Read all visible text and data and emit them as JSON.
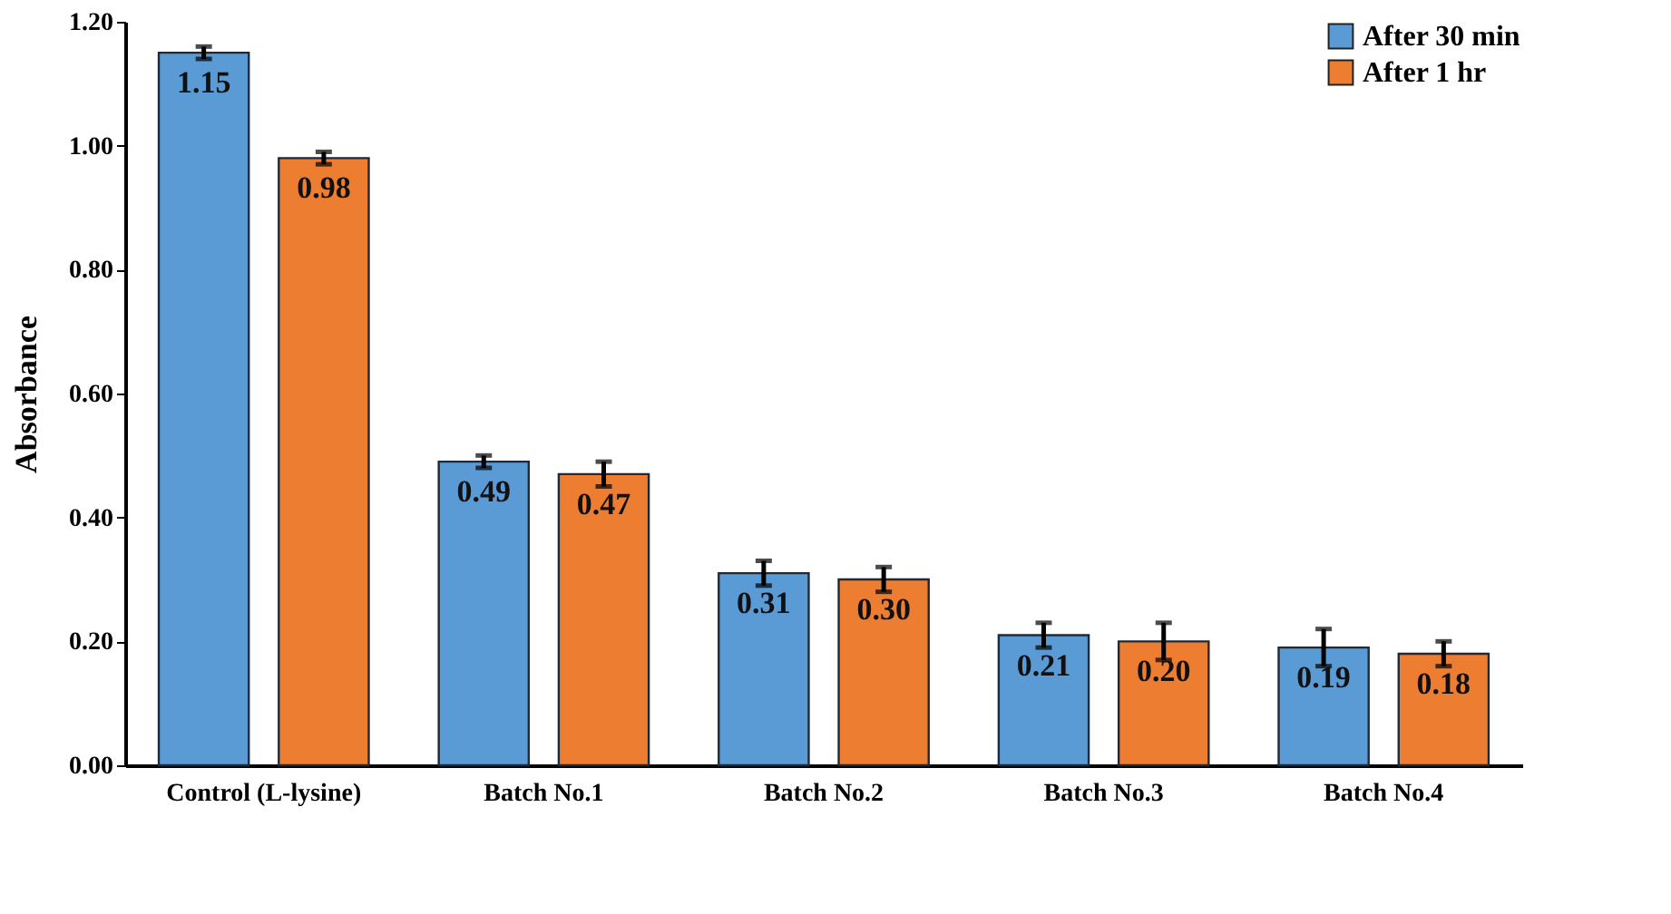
{
  "chart_data": {
    "type": "bar",
    "ylabel": "Absorbance",
    "categories": [
      "Control (L-lysine)",
      "Batch No.1",
      "Batch No.2",
      "Batch No.3",
      "Batch No.4"
    ],
    "series": [
      {
        "name": "After 30 min",
        "color": "#5b9bd5",
        "values": [
          1.15,
          0.49,
          0.31,
          0.21,
          0.19
        ],
        "value_labels": [
          "1.15",
          "0.49",
          "0.31",
          "0.21",
          "0.19"
        ],
        "errors": [
          0.01,
          0.01,
          0.02,
          0.02,
          0.03
        ]
      },
      {
        "name": "After 1 hr",
        "color": "#ed7d31",
        "values": [
          0.98,
          0.47,
          0.3,
          0.2,
          0.18
        ],
        "value_labels": [
          "0.98",
          "0.47",
          "0.30",
          "0.20",
          "0.18"
        ],
        "errors": [
          0.01,
          0.02,
          0.02,
          0.03,
          0.02
        ]
      }
    ],
    "ylim": [
      0,
      1.2
    ],
    "yticks": [
      {
        "value": 0,
        "label": "0.00"
      },
      {
        "value": 0.2,
        "label": "0.20"
      },
      {
        "value": 0.4,
        "label": "0.40"
      },
      {
        "value": 0.6,
        "label": "0.60"
      },
      {
        "value": 0.8,
        "label": "0.80"
      },
      {
        "value": 1.0,
        "label": "1.00"
      },
      {
        "value": 1.2,
        "label": "1.20"
      }
    ],
    "grid": false,
    "legend": "top right"
  }
}
